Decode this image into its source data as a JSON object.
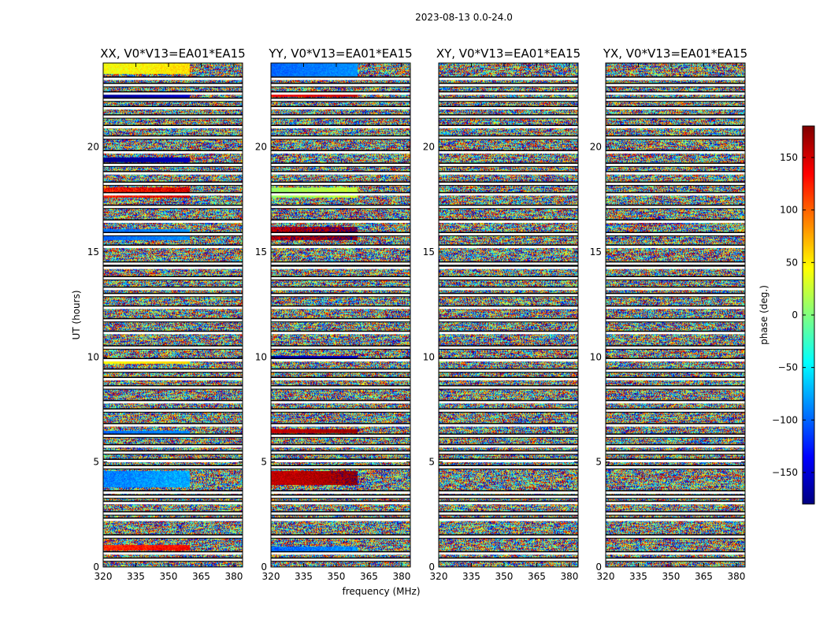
{
  "figure": {
    "suptitle": "2023-08-13 0.0-24.0",
    "xlabel": "frequency (MHz)",
    "ylabel": "UT (hours)"
  },
  "chart_data": {
    "type": "heatmap",
    "panels": [
      {
        "title": "XX, V0*V13=EA01*EA15"
      },
      {
        "title": "YY, V0*V13=EA01*EA15"
      },
      {
        "title": "XY, V0*V13=EA01*EA15"
      },
      {
        "title": "YX, V0*V13=EA01*EA15"
      }
    ],
    "x_ticks": [
      "320",
      "335",
      "350",
      "365",
      "380"
    ],
    "x_tick_values": [
      320,
      335,
      350,
      365,
      380
    ],
    "xlim": [
      320,
      384
    ],
    "y_ticks": [
      "0",
      "5",
      "10",
      "15",
      "20"
    ],
    "y_tick_values": [
      0,
      5,
      10,
      15,
      20
    ],
    "ylim": [
      0,
      24
    ],
    "colorbar": {
      "label": "phase (deg.)",
      "ticks": [
        "−150",
        "−100",
        "−50",
        "0",
        "50",
        "100",
        "150"
      ],
      "tick_values": [
        -150,
        -100,
        -50,
        0,
        50,
        100,
        150
      ],
      "range": [
        -180,
        180
      ],
      "colormap": "jet"
    },
    "flagged_ut_hours": [
      0.35,
      0.65,
      1.45,
      2.25,
      2.55,
      3.05,
      3.35,
      3.55,
      4.75,
      5.05,
      5.45,
      5.75,
      6.25,
      6.75,
      7.45,
      7.85,
      8.55,
      8.95,
      9.35,
      9.85,
      10.45,
      11.15,
      11.75,
      12.35,
      12.95,
      13.25,
      13.75,
      14.25,
      14.45,
      15.25,
      15.85,
      16.45,
      17.15,
      17.75,
      18.25,
      18.75,
      19.15,
      19.75,
      20.45,
      20.95,
      21.45,
      21.85,
      22.25,
      22.55,
      22.95,
      23.25
    ],
    "coherent_bands": [
      {
        "panel": 0,
        "y0": 23.5,
        "y1": 24.0,
        "phase": 40,
        "spread": 35
      },
      {
        "panel": 0,
        "y0": 22.3,
        "y1": 22.5,
        "phase": -170,
        "spread": 10
      },
      {
        "panel": 0,
        "y0": 19.3,
        "y1": 19.5,
        "phase": -175,
        "spread": 10
      },
      {
        "panel": 0,
        "y0": 17.6,
        "y1": 18.1,
        "phase": 130,
        "spread": 60
      },
      {
        "panel": 0,
        "y0": 15.6,
        "y1": 16.1,
        "phase": -100,
        "spread": 25
      },
      {
        "panel": 0,
        "y0": 9.7,
        "y1": 9.85,
        "phase": 45,
        "spread": 15
      },
      {
        "panel": 0,
        "y0": 6.3,
        "y1": 6.5,
        "phase": -100,
        "spread": 25
      },
      {
        "panel": 0,
        "y0": 3.8,
        "y1": 4.6,
        "phase": -90,
        "spread": 40
      },
      {
        "panel": 0,
        "y0": 0.8,
        "y1": 1.05,
        "phase": 120,
        "spread": 40
      },
      {
        "panel": 1,
        "y0": 23.3,
        "y1": 24.0,
        "phase": -100,
        "spread": 25
      },
      {
        "panel": 1,
        "y0": 22.4,
        "y1": 22.6,
        "phase": 140,
        "spread": 25
      },
      {
        "panel": 1,
        "y0": 17.6,
        "y1": 18.1,
        "phase": 10,
        "spread": 30
      },
      {
        "panel": 1,
        "y0": 15.6,
        "y1": 16.2,
        "phase": 160,
        "spread": 50
      },
      {
        "panel": 1,
        "y0": 9.85,
        "y1": 10.05,
        "phase": -165,
        "spread": 15
      },
      {
        "panel": 1,
        "y0": 6.4,
        "y1": 6.6,
        "phase": 155,
        "spread": 20
      },
      {
        "panel": 1,
        "y0": 3.9,
        "y1": 4.6,
        "phase": 155,
        "spread": 30
      },
      {
        "panel": 1,
        "y0": 0.7,
        "y1": 1.0,
        "phase": -100,
        "spread": 45
      }
    ]
  }
}
